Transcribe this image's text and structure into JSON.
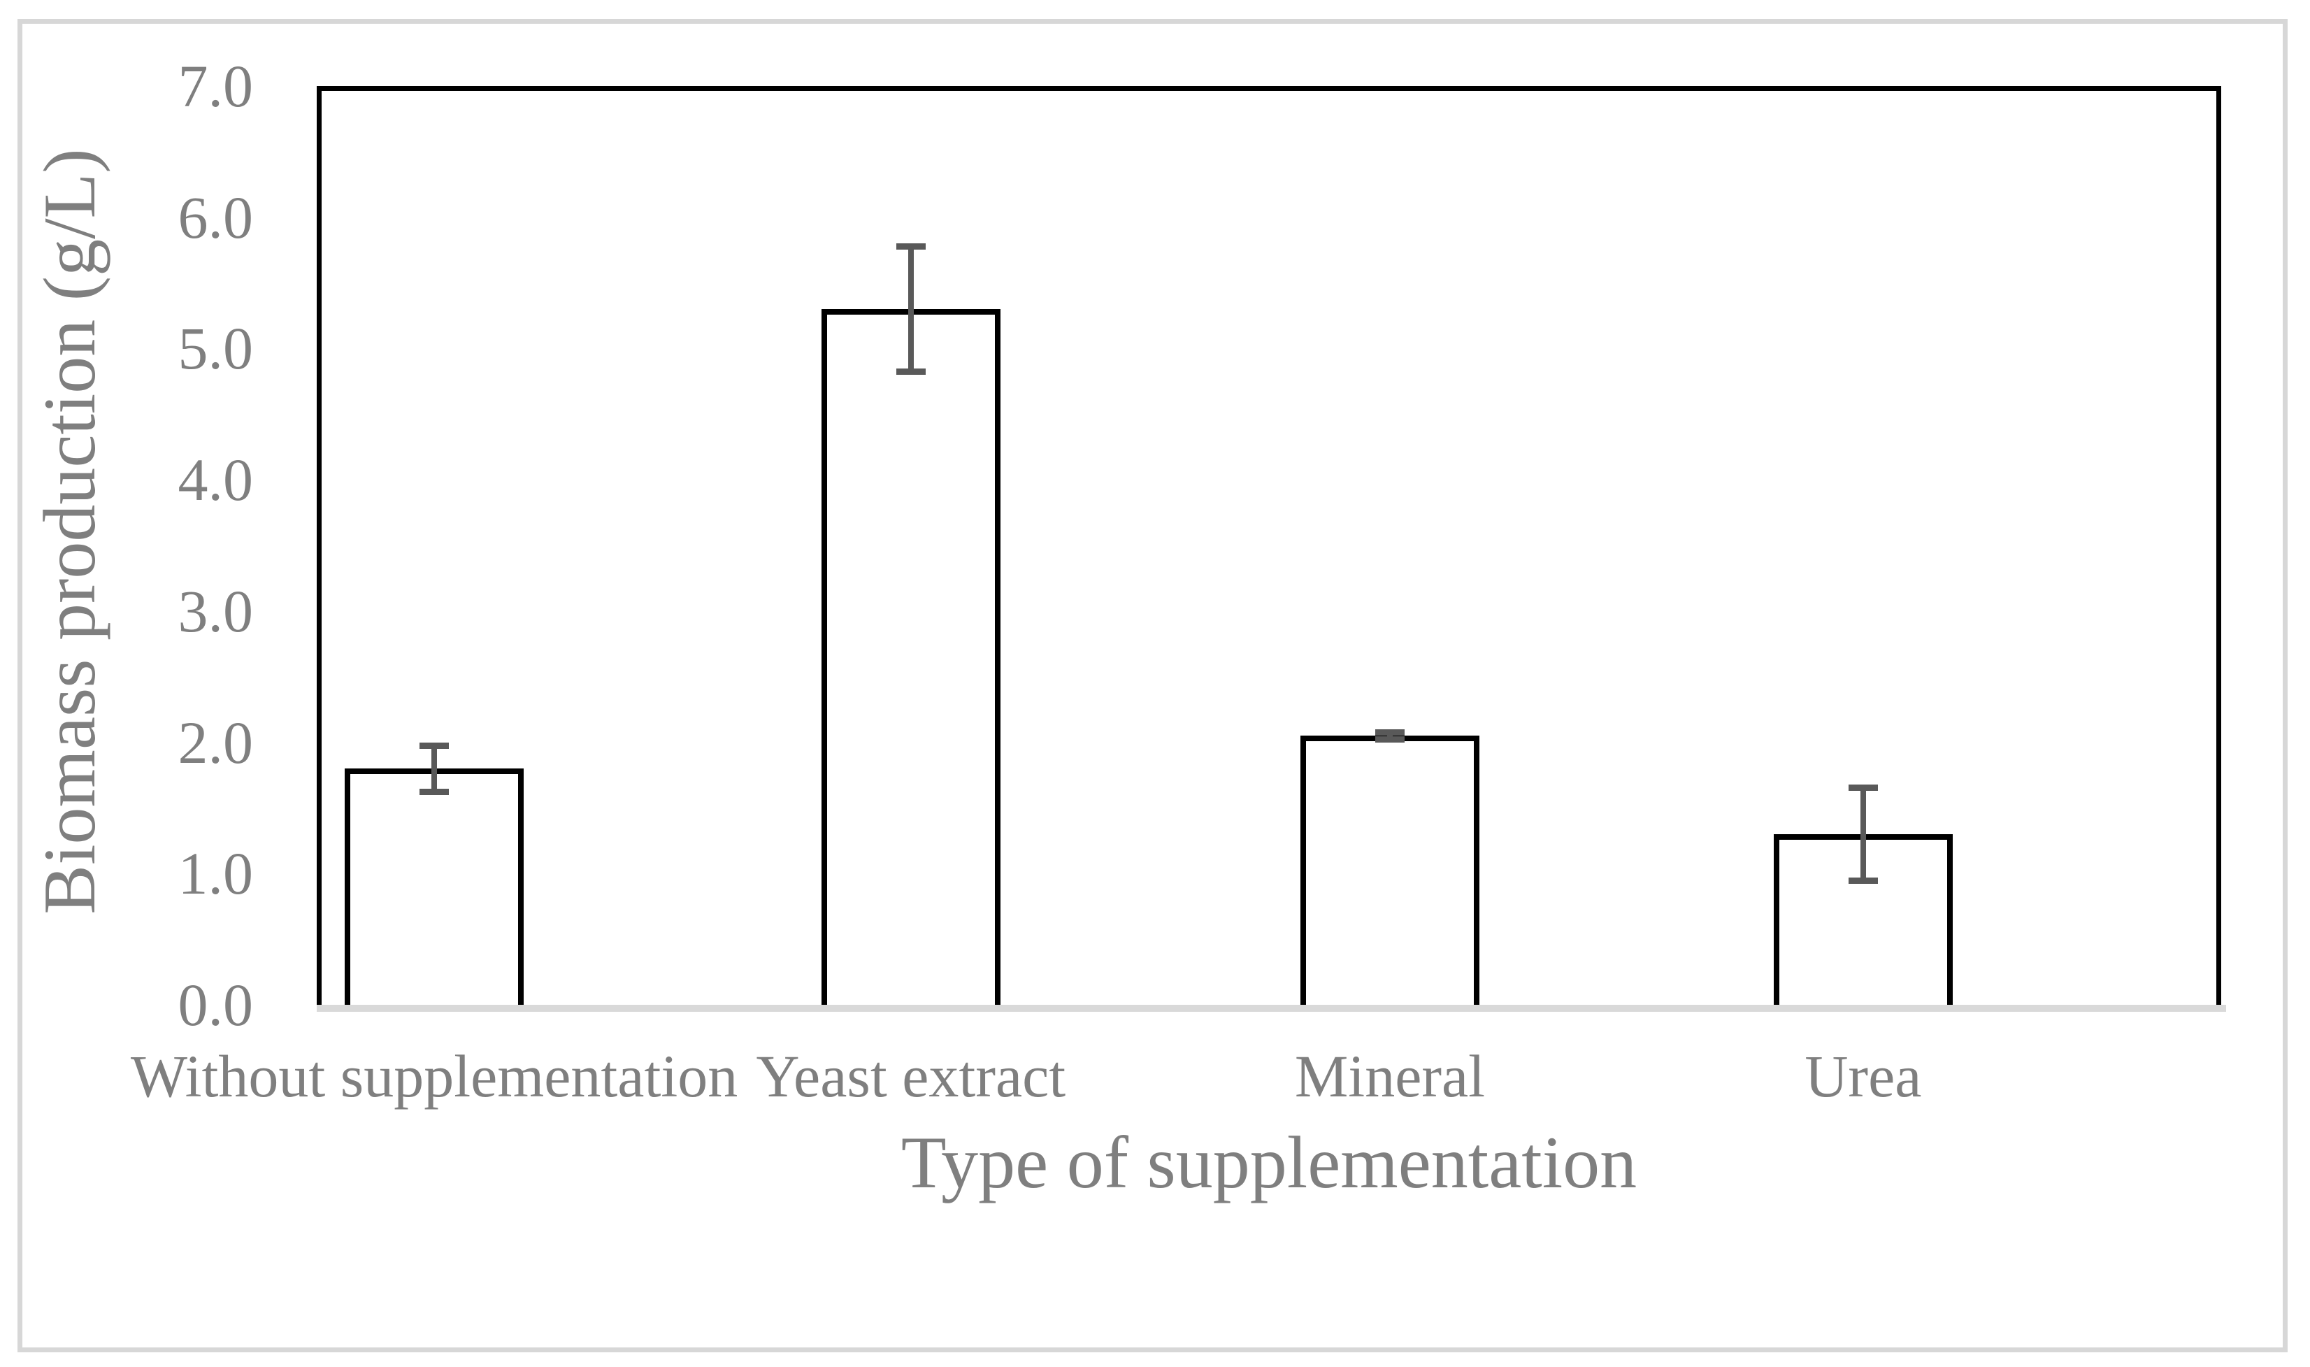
{
  "figure": {
    "x_axis_title": "Type of supplementation",
    "y_axis_title": "Biomass production (g/L)"
  },
  "chart_data": {
    "type": "bar",
    "title": "",
    "xlabel": "Type of supplementation",
    "ylabel": "Biomass production (g/L)",
    "categories": [
      "Without supplementation",
      "Yeast extract",
      "Mineral",
      "Urea"
    ],
    "values": [
      1.8,
      5.3,
      2.05,
      1.3
    ],
    "errors": [
      0.2,
      0.5,
      0.05,
      0.38
    ],
    "ylim": [
      0,
      7
    ],
    "ytick_step": 1.0,
    "ytick_labels": [
      "0.0",
      "1.0",
      "2.0",
      "3.0",
      "4.0",
      "5.0",
      "6.0",
      "7.0"
    ],
    "grid": false,
    "legend": false,
    "colors": {
      "bar_fill": "#ffffff",
      "bar_border": "#000000",
      "error_bar": "#595959",
      "baseline": "#d9d9d9",
      "axis_text": "#7f7f7f",
      "plot_border": "#000000",
      "outer_frame": "#d7d7d7"
    }
  }
}
